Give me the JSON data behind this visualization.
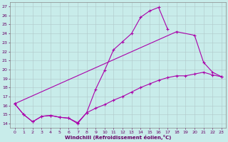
{
  "bg_color": "#c8ecea",
  "grid_color": "#b0c8c8",
  "line_color": "#aa00aa",
  "xlabel": "Windchill (Refroidissement éolien,°C)",
  "xlim": [
    -0.5,
    23.5
  ],
  "ylim": [
    13.5,
    27.5
  ],
  "xticks": [
    0,
    1,
    2,
    3,
    4,
    5,
    6,
    7,
    8,
    9,
    10,
    11,
    12,
    13,
    14,
    15,
    16,
    17,
    18,
    19,
    20,
    21,
    22,
    23
  ],
  "yticks": [
    14,
    15,
    16,
    17,
    18,
    19,
    20,
    21,
    22,
    23,
    24,
    25,
    26,
    27
  ],
  "curve1_x": [
    0,
    1,
    2,
    3,
    4,
    5,
    6,
    7,
    8,
    9,
    10,
    11,
    12,
    13,
    14,
    15,
    16,
    17
  ],
  "curve1_y": [
    16.2,
    15.0,
    14.2,
    14.8,
    14.9,
    14.7,
    14.6,
    14.0,
    15.2,
    17.8,
    19.9,
    22.2,
    23.1,
    24.0,
    25.8,
    26.5,
    26.9,
    24.5
  ],
  "curve2_x": [
    0,
    1,
    2,
    3,
    4,
    5,
    6,
    7,
    8,
    9,
    10,
    11,
    12,
    13,
    14,
    15,
    16,
    17,
    18,
    19,
    20,
    21,
    22,
    23
  ],
  "curve2_y": [
    16.2,
    15.0,
    14.2,
    14.8,
    14.9,
    14.7,
    14.6,
    14.1,
    15.2,
    15.7,
    16.1,
    16.6,
    17.0,
    17.5,
    18.0,
    18.4,
    18.8,
    19.1,
    19.3,
    19.3,
    19.5,
    19.7,
    19.4,
    19.2
  ],
  "curve3_x": [
    0,
    18,
    20,
    21,
    22,
    23
  ],
  "curve3_y": [
    16.2,
    24.2,
    23.8,
    20.8,
    19.7,
    19.2
  ]
}
